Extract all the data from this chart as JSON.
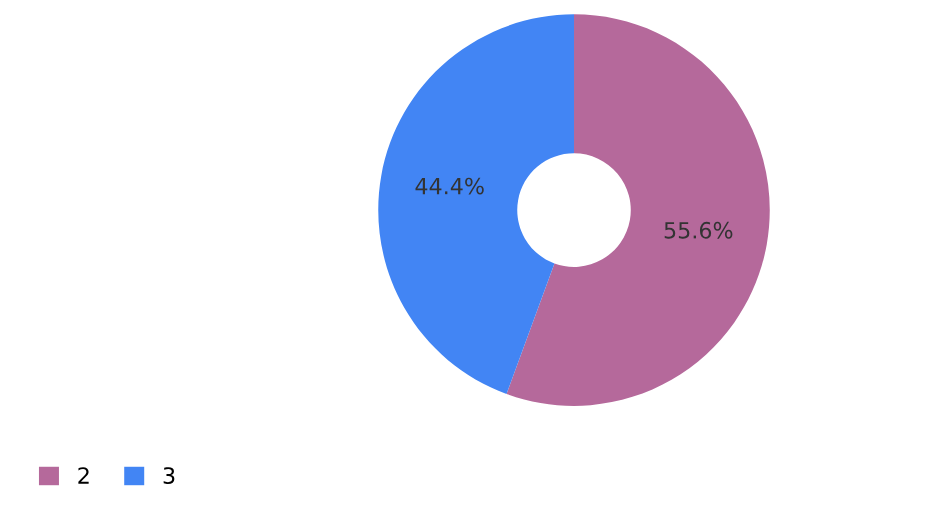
{
  "chart_data": {
    "type": "donut",
    "categories": [
      "2",
      "3"
    ],
    "values": [
      55.6,
      44.4
    ],
    "colors": [
      "#b5699b",
      "#4285f4"
    ],
    "value_labels": [
      "55.6%",
      "44.4%"
    ],
    "legend": "bottom left"
  }
}
